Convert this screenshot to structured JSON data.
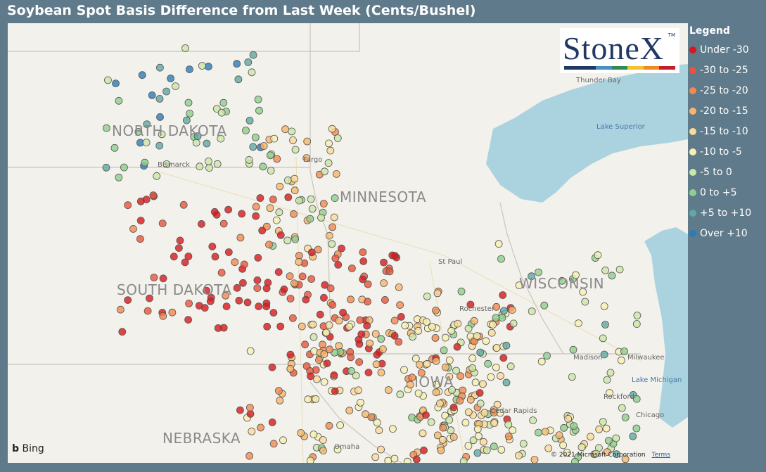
{
  "title": "Soybean Spot Basis Difference from Last Week (Cents/Bushel)",
  "legend": {
    "title": "Legend",
    "items": [
      {
        "label": "Under -30",
        "color": "#d7191c"
      },
      {
        "label": "-30 to -25",
        "color": "#e8553a"
      },
      {
        "label": "-25 to -20",
        "color": "#f38a4d"
      },
      {
        "label": "-20 to -15",
        "color": "#f8b66d"
      },
      {
        "label": "-15 to -10",
        "color": "#fbdb98"
      },
      {
        "label": "-10 to -5",
        "color": "#f5f0b0"
      },
      {
        "label": "-5 to 0",
        "color": "#cbe6a6"
      },
      {
        "label": "0 to +5",
        "color": "#8fcf8c"
      },
      {
        "label": "+5 to +10",
        "color": "#5fa9a4"
      },
      {
        "label": "Over +10",
        "color": "#2c7bb6"
      }
    ]
  },
  "map": {
    "states": [
      "NORTH DAKOTA",
      "MINNESOTA",
      "SOUTH DAKOTA",
      "WISCONSIN",
      "NEBRASKA",
      "IOWA"
    ],
    "cities": [
      "Bismarck",
      "Fargo",
      "St Paul",
      "Rochester",
      "Madison",
      "Milwaukee",
      "Rockford",
      "Chicago",
      "Cedar Rapids",
      "Omaha",
      "Thunder Bay"
    ],
    "lakes": [
      "Lake Superior",
      "Lake Michigan"
    ],
    "logo": "StoneX",
    "logo_mark": "TM",
    "bing": "Bing",
    "copyright": "© 2021 Microsoft Corporation",
    "terms": "Terms"
  }
}
